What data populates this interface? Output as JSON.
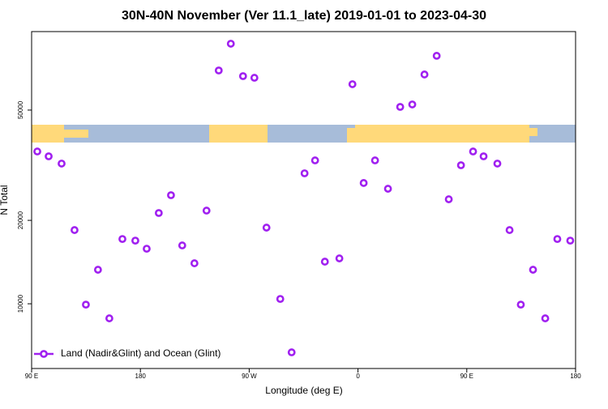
{
  "chart_data": {
    "type": "scatter",
    "title": "30N-40N November (Ver 11.1_late)   2019-01-01 to 2023-04-30",
    "x_label": "Longitude (deg E)",
    "y_label": "N Total",
    "log_y": true,
    "legend": "lower left",
    "xlim": [
      90,
      540
    ],
    "xticks": [
      {
        "value": 90,
        "label": "90 E"
      },
      180,
      {
        "value": 270,
        "label": "90 W"
      },
      {
        "value": 360,
        "label": "0"
      },
      {
        "value": 450,
        "label": "90 E"
      },
      {
        "value": 540,
        "label": "180"
      }
    ],
    "ylim": [
      5840,
      96000
    ],
    "yticks": [
      10000,
      20000,
      50000
    ],
    "series": [
      {
        "name": "Land (Nadir&Glint) and Ocean (Glint)",
        "color": "#a020f0",
        "x": [
          94.7,
          104.1,
          114.8,
          125.5,
          134.9,
          144.9,
          154.3,
          165.1,
          175.8,
          185.2,
          195.2,
          205.3,
          214.6,
          224.7,
          234.7,
          244.8,
          254.8,
          264.9,
          274.3,
          284.3,
          295.7,
          305.1,
          315.8,
          324.5,
          332.6,
          344.6,
          355.4,
          364.7,
          374.1,
          384.8,
          394.9,
          404.9,
          415.0,
          425.1,
          435.1,
          445.2,
          455.2,
          463.9,
          475.3,
          485.4,
          494.7,
          504.8,
          514.9,
          524.9,
          535.6
        ],
        "values": [
          35450,
          34050,
          32060,
          18450,
          9930,
          13270,
          8860,
          17130,
          16900,
          15800,
          21260,
          24650,
          16240,
          14000,
          21690,
          69500,
          86800,
          66300,
          65400,
          18830,
          10410,
          6680,
          29570,
          32920,
          14190,
          14580,
          62000,
          27280,
          32920,
          26010,
          51340,
          52400,
          67220,
          78500,
          23830,
          31620,
          35450,
          34050,
          32060,
          18450,
          9930,
          13270,
          8860,
          17130,
          16900
        ]
      }
    ]
  }
}
